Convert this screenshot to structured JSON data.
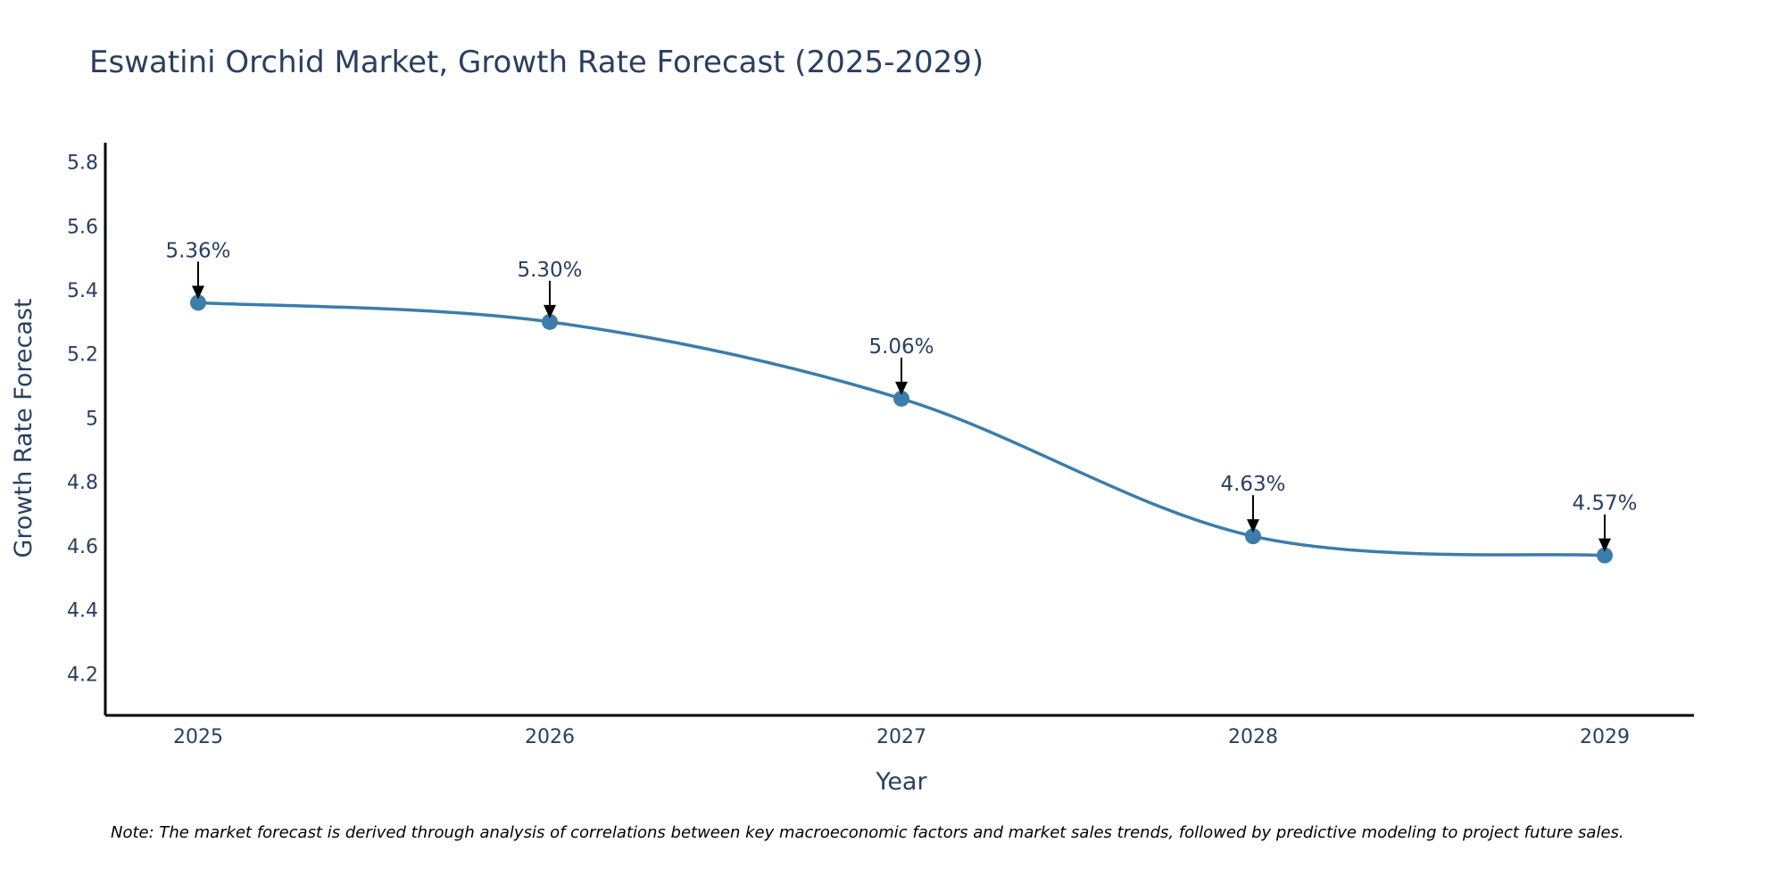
{
  "colors": {
    "line": "#3b7dab",
    "marker": "#3b7dab",
    "axis": "#000000",
    "text": "#2a3f5f",
    "arrow": "#000000"
  },
  "chart_data": {
    "type": "line",
    "title": "Eswatini Orchid Market, Growth Rate Forecast (2025-2029)",
    "xlabel": "Year",
    "ylabel": "Growth Rate Forecast",
    "categories": [
      "2025",
      "2026",
      "2027",
      "2028",
      "2029"
    ],
    "series": [
      {
        "name": "Growth Rate Forecast",
        "values": [
          5.36,
          5.3,
          5.06,
          4.63,
          4.57
        ]
      }
    ],
    "data_labels": [
      "5.36%",
      "5.30%",
      "5.06%",
      "4.63%",
      "4.57%"
    ],
    "yticks": [
      4.2,
      4.4,
      4.6,
      4.8,
      5,
      5.2,
      5.4,
      5.6,
      5.8
    ],
    "ytick_labels": [
      "4.2",
      "4.4",
      "4.6",
      "4.8",
      "5",
      "5.2",
      "5.4",
      "5.6",
      "5.8"
    ],
    "ylim": [
      4.07,
      5.86
    ],
    "line_shape": "spline",
    "grid": false,
    "note": "Note: The market forecast is derived through analysis of correlations between key macroeconomic factors and market sales trends, followed by predictive modeling to project future sales."
  }
}
